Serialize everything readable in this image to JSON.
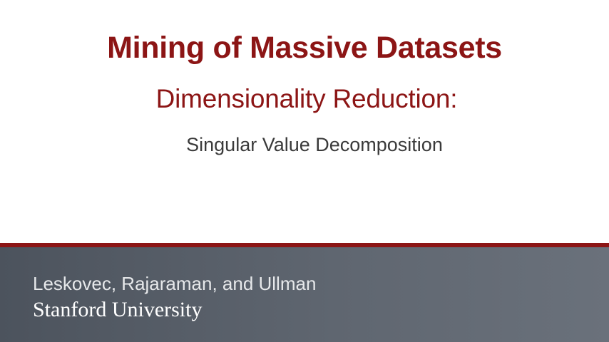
{
  "slide": {
    "title": "Mining of Massive Datasets",
    "subtitle": "Dimensionality Reduction:",
    "subsubtitle": "Singular Value Decomposition",
    "authors": "Leskovec, Rajaraman, and Ullman",
    "university": "Stanford University"
  },
  "colors": {
    "accent": "#8c1515",
    "footer_background": "#5a616b",
    "subtitle_gray": "#3a3a3a"
  }
}
